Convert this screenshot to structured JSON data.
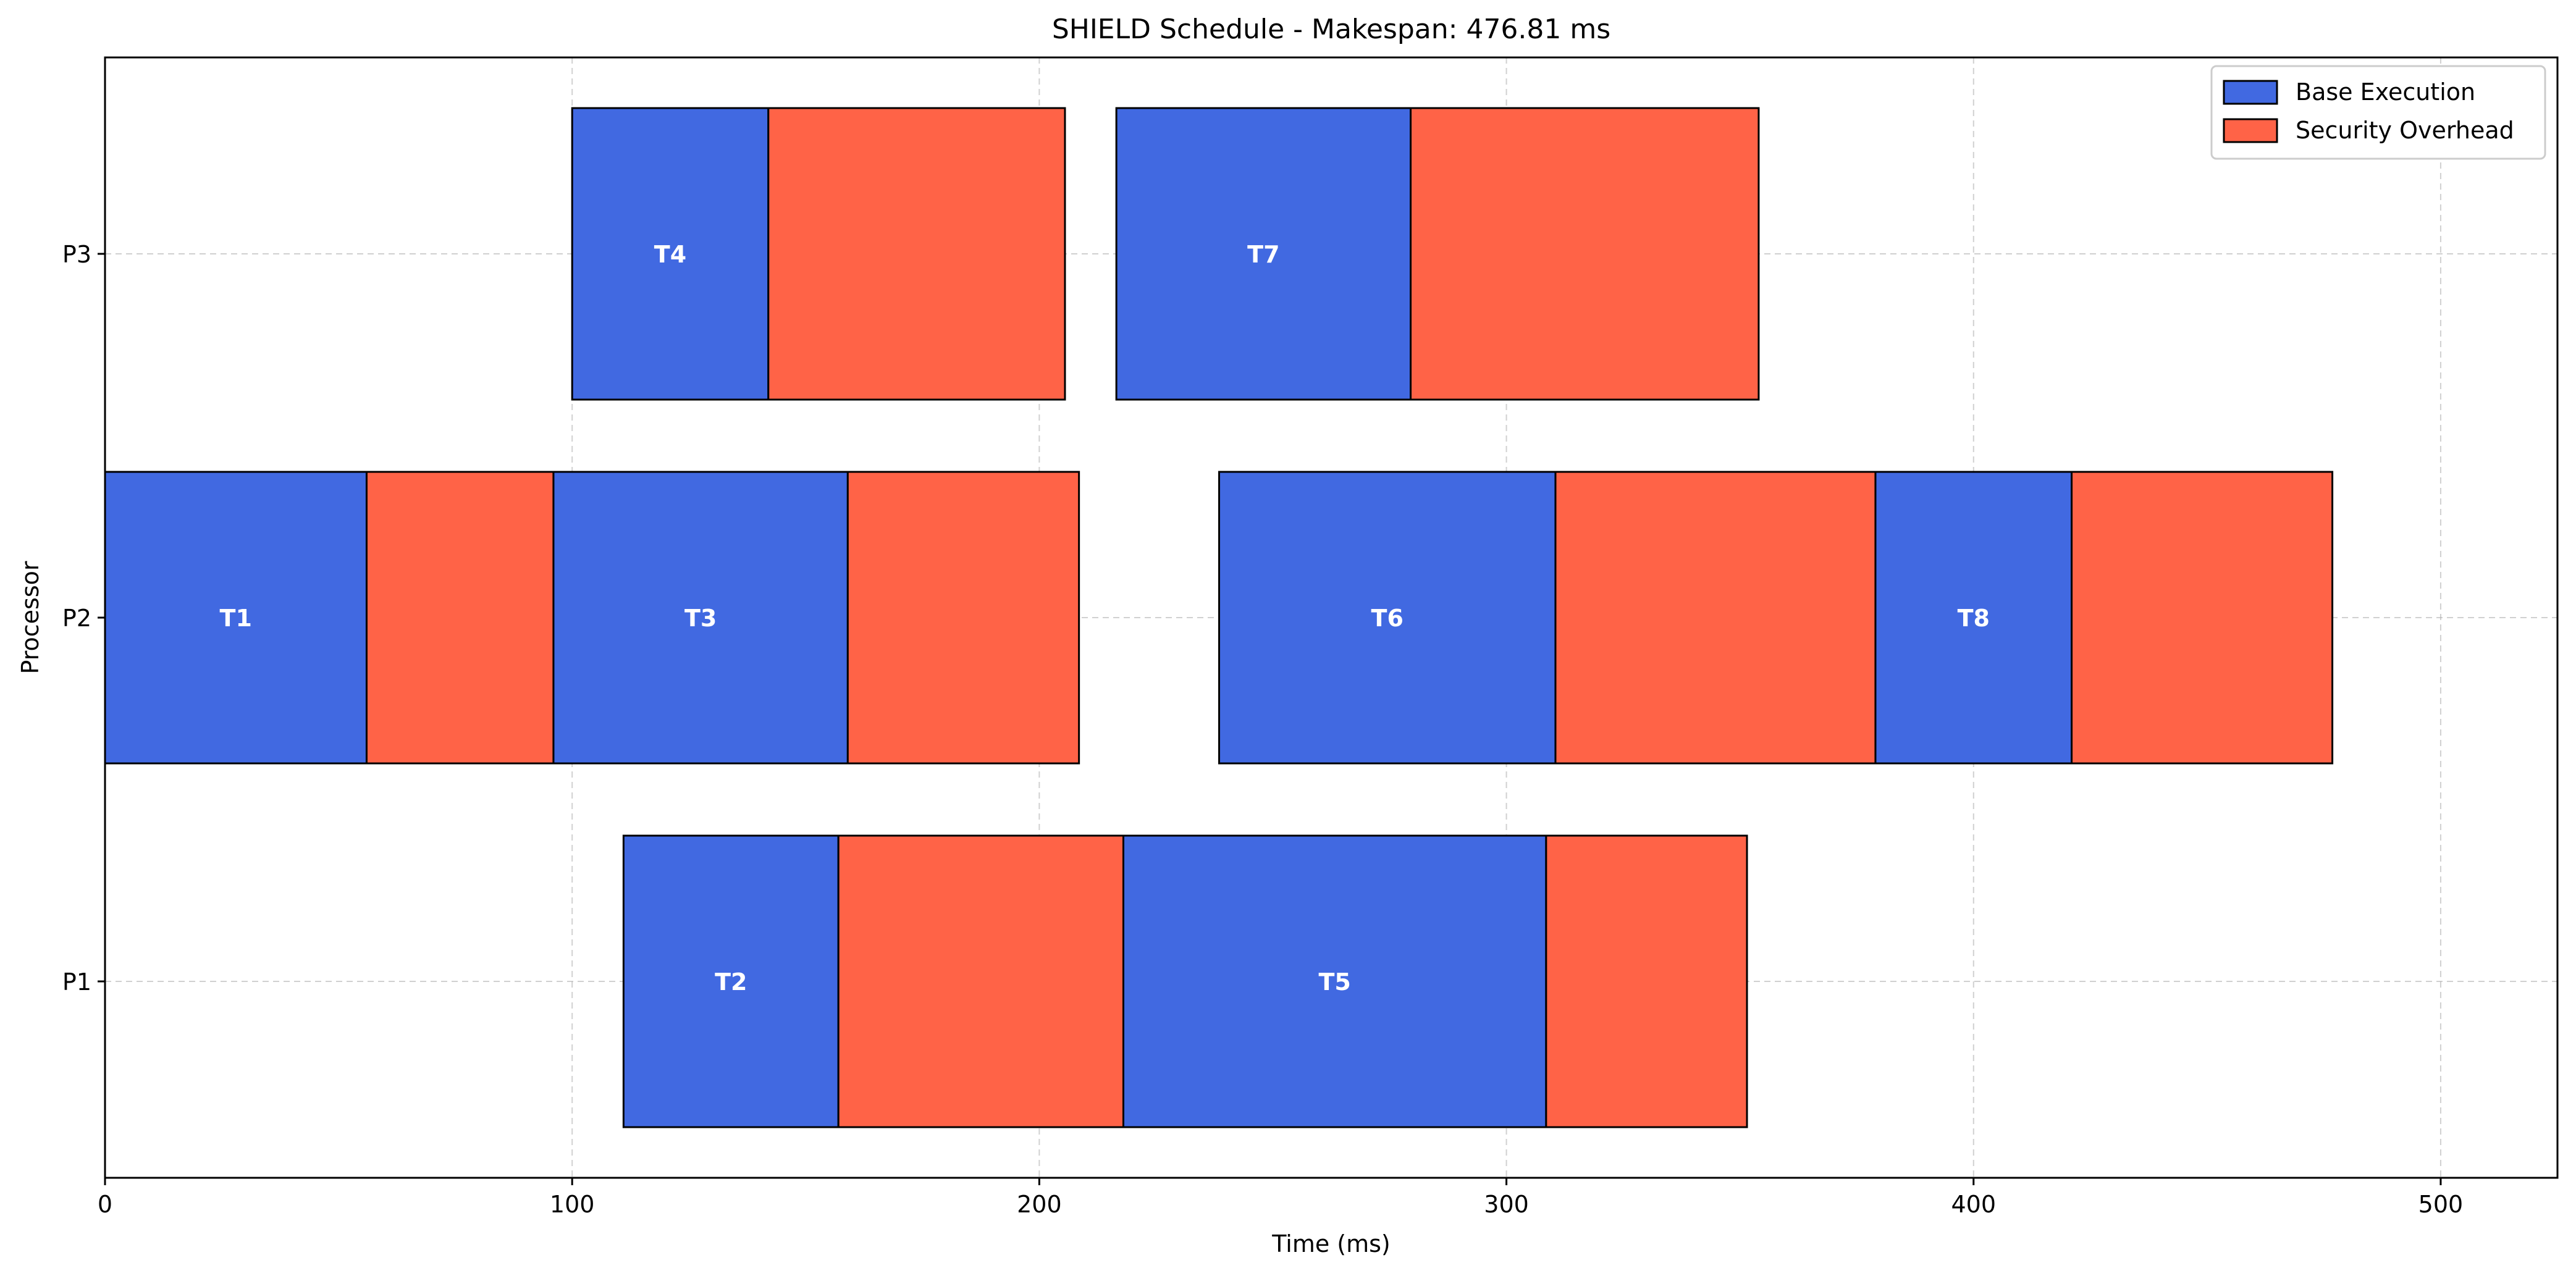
{
  "chart_data": {
    "type": "gantt",
    "title": "SHIELD Schedule - Makespan: 476.81 ms",
    "xlabel": "Time (ms)",
    "ylabel": "Processor",
    "xlim": [
      0,
      525
    ],
    "xticks": [
      0,
      100,
      200,
      300,
      400,
      500
    ],
    "processors": [
      "P1",
      "P2",
      "P3"
    ],
    "grid": true,
    "legend_position": "upper-right",
    "legend": [
      {
        "label": "Base Execution",
        "color": "#4169E1"
      },
      {
        "label": "Security Overhead",
        "color": "#FF6347"
      }
    ],
    "tasks": [
      {
        "name": "T1",
        "processor": "P2",
        "start": 0,
        "base_end": 56,
        "end": 96
      },
      {
        "name": "T3",
        "processor": "P2",
        "start": 96,
        "base_end": 159,
        "end": 208.5
      },
      {
        "name": "T6",
        "processor": "P2",
        "start": 238.5,
        "base_end": 310.5,
        "end": 379
      },
      {
        "name": "T8",
        "processor": "P2",
        "start": 379,
        "base_end": 421,
        "end": 476.81
      },
      {
        "name": "T4",
        "processor": "P3",
        "start": 100,
        "base_end": 142,
        "end": 205.5
      },
      {
        "name": "T7",
        "processor": "P3",
        "start": 216.5,
        "base_end": 279.5,
        "end": 354
      },
      {
        "name": "T2",
        "processor": "P1",
        "start": 111,
        "base_end": 157,
        "end": 218
      },
      {
        "name": "T5",
        "processor": "P1",
        "start": 218,
        "base_end": 308.5,
        "end": 351.5
      }
    ]
  }
}
